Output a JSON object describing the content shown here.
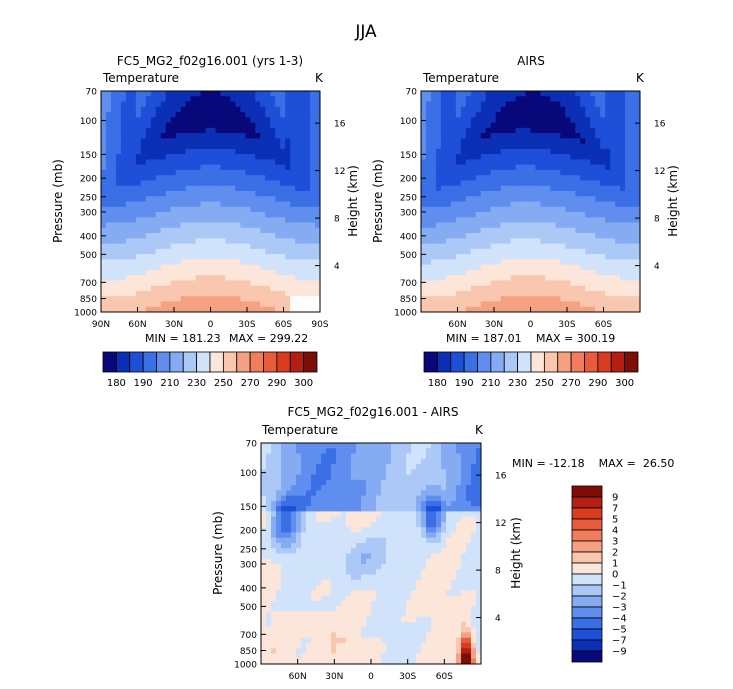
{
  "figure": {
    "title": "JJA"
  },
  "chart_data": [
    {
      "id": "model",
      "type": "heatmap",
      "title": "FC5_MG2_f02g16.001 (yrs 1-3)",
      "variable_label": "Temperature",
      "unit_label": "K",
      "ylabel": "Pressure (mb)",
      "y2label": "Height (km)",
      "x_ticks": [
        "90N",
        "60N",
        "30N",
        "0",
        "30S",
        "60S",
        "90S"
      ],
      "x_range": [
        90,
        -90
      ],
      "y_ticks": [
        70,
        100,
        150,
        200,
        250,
        300,
        400,
        500,
        700,
        850,
        1000
      ],
      "y_range": [
        1000,
        70
      ],
      "y_scale": "log",
      "y2_ticks": [
        4,
        8,
        12,
        16
      ],
      "min_label": "MIN = 181.23",
      "max_label": "MAX = 299.22",
      "min": 181.23,
      "max": 299.22,
      "missing_region": "bottom-right, poleward of 65S below 850 mb"
    },
    {
      "id": "obs",
      "type": "heatmap",
      "title": "AIRS",
      "variable_label": "Temperature",
      "unit_label": "K",
      "ylabel": "Pressure (mb)",
      "y2label": "Height (km)",
      "x_ticks": [
        "60N",
        "30N",
        "0",
        "30S",
        "60S"
      ],
      "x_range": [
        90,
        -90
      ],
      "y_ticks": [
        70,
        100,
        150,
        200,
        250,
        300,
        400,
        500,
        700,
        850,
        1000
      ],
      "y_range": [
        1000,
        70
      ],
      "y_scale": "log",
      "y2_ticks": [
        4,
        8,
        12,
        16
      ],
      "min_label": "MIN = 187.01",
      "max_label": "MAX = 300.19",
      "min": 187.01,
      "max": 300.19
    },
    {
      "id": "diff",
      "type": "heatmap",
      "title": "FC5_MG2_f02g16.001 - AIRS",
      "variable_label": "Temperature",
      "unit_label": "K",
      "ylabel": "Pressure (mb)",
      "y2label": "Height (km)",
      "x_ticks": [
        "60N",
        "30N",
        "0",
        "30S",
        "60S"
      ],
      "x_range": [
        90,
        -90
      ],
      "y_ticks": [
        70,
        100,
        150,
        200,
        250,
        300,
        400,
        500,
        700,
        850,
        1000
      ],
      "y_range": [
        1000,
        70
      ],
      "y_scale": "log",
      "y2_ticks": [
        4,
        8,
        12,
        16
      ],
      "minmax_label": "MIN = -12.18    MAX =  26.50",
      "min": -12.18,
      "max": 26.5
    }
  ],
  "colorbars": {
    "absolute": {
      "levels": [
        "180",
        "190",
        "210",
        "230",
        "250",
        "270",
        "290",
        "300"
      ],
      "colors": [
        "#08087a",
        "#0b2fb5",
        "#1e4fd8",
        "#3a6fe6",
        "#5f8eee",
        "#85acf3",
        "#abc8f6",
        "#d1e3fa",
        "#fbe6d9",
        "#f8c7ae",
        "#f5a283",
        "#f17d5c",
        "#e85c3c",
        "#d83d22",
        "#b51f12",
        "#7d0e07"
      ]
    },
    "difference": {
      "levels": [
        "9",
        "7",
        "5",
        "4",
        "3",
        "2",
        "1",
        "0",
        "−1",
        "−2",
        "−3",
        "−4",
        "−5",
        "−7",
        "−9"
      ],
      "colors": [
        "#7d0e07",
        "#b51f12",
        "#d83d22",
        "#e85c3c",
        "#f17d5c",
        "#f5a283",
        "#f8c7ae",
        "#fbe6d9",
        "#d1e3fa",
        "#abc8f6",
        "#85acf3",
        "#5f8eee",
        "#3a6fe6",
        "#1e4fd8",
        "#0b2fb5",
        "#08087a"
      ]
    }
  }
}
